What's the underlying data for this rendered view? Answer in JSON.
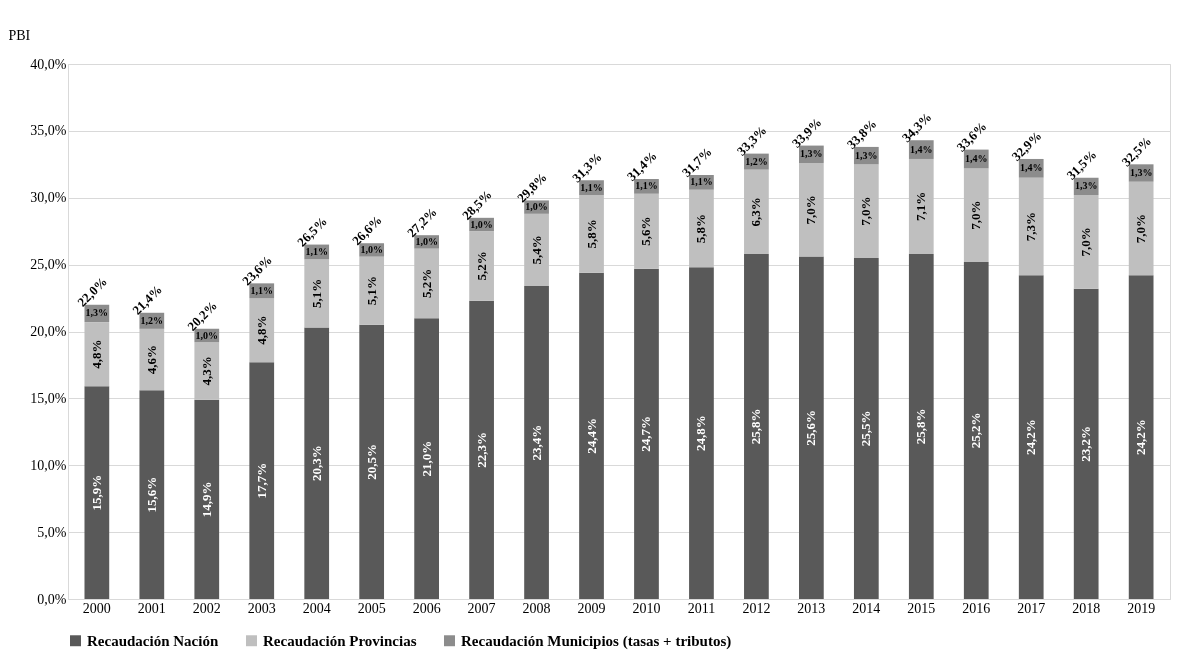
{
  "chart_data": {
    "type": "bar",
    "stacked": true,
    "ylabel": "PBI",
    "categories": [
      "2000",
      "2001",
      "2002",
      "2003",
      "2004",
      "2005",
      "2006",
      "2007",
      "2008",
      "2009",
      "2010",
      "2011",
      "2012",
      "2013",
      "2014",
      "2015",
      "2016",
      "2017",
      "2018",
      "2019"
    ],
    "series": [
      {
        "name": "Recaudación Nación",
        "color": "#595959",
        "values": [
          15.9,
          15.6,
          14.9,
          17.7,
          20.3,
          20.5,
          21.0,
          22.3,
          23.4,
          24.4,
          24.7,
          24.8,
          25.8,
          25.6,
          25.5,
          25.8,
          25.2,
          24.2,
          23.2,
          24.2
        ],
        "value_labels": [
          "15,9%",
          "15,6%",
          "14,9%",
          "17,7%",
          "20,3%",
          "20,5%",
          "21,0%",
          "22,3%",
          "23,4%",
          "24,4%",
          "24,7%",
          "24,8%",
          "25,8%",
          "25,6%",
          "25,5%",
          "25,8%",
          "25,2%",
          "24,2%",
          "23,2%",
          "24,2%"
        ]
      },
      {
        "name": "Recaudación Provincias",
        "color": "#bfbfbf",
        "values": [
          4.8,
          4.6,
          4.3,
          4.8,
          5.1,
          5.1,
          5.2,
          5.2,
          5.4,
          5.8,
          5.6,
          5.8,
          6.3,
          7.0,
          7.0,
          7.1,
          7.0,
          7.3,
          7.0,
          7.0
        ],
        "value_labels": [
          "4,8%",
          "4,6%",
          "4,3%",
          "4,8%",
          "5,1%",
          "5,1%",
          "5,2%",
          "5,2%",
          "5,4%",
          "5,8%",
          "5,6%",
          "5,8%",
          "6,3%",
          "7,0%",
          "7,0%",
          "7,1%",
          "7,0%",
          "7,3%",
          "7,0%",
          "7,0%"
        ]
      },
      {
        "name": "Recaudación Municipios (tasas + tributos)",
        "color": "#8c8c8c",
        "values": [
          1.3,
          1.2,
          1.0,
          1.1,
          1.1,
          1.0,
          1.0,
          1.0,
          1.0,
          1.1,
          1.1,
          1.1,
          1.2,
          1.3,
          1.3,
          1.4,
          1.4,
          1.4,
          1.3,
          1.3
        ],
        "value_labels": [
          "1,3%",
          "1,2%",
          "1,0%",
          "1,1%",
          "1,1%",
          "1,0%",
          "1,0%",
          "1,0%",
          "1,0%",
          "1,1%",
          "1,1%",
          "1,1%",
          "1,2%",
          "1,3%",
          "1,3%",
          "1,4%",
          "1,4%",
          "1,4%",
          "1,3%",
          "1,3%"
        ]
      }
    ],
    "totals": [
      "22,0%",
      "21,4%",
      "20,2%",
      "23,6%",
      "26,5%",
      "26,6%",
      "27,2%",
      "28,5%",
      "29,8%",
      "31,3%",
      "31,4%",
      "31,7%",
      "33,3%",
      "33,9%",
      "33,8%",
      "34,3%",
      "33,6%",
      "32,9%",
      "31,5%",
      "32,5%"
    ],
    "ylim": [
      0,
      40
    ],
    "yticks": [
      {
        "value": 0,
        "label": "0,0%"
      },
      {
        "value": 5,
        "label": "5,0%"
      },
      {
        "value": 10,
        "label": "10,0%"
      },
      {
        "value": 15,
        "label": "15,0%"
      },
      {
        "value": 20,
        "label": "20,0%"
      },
      {
        "value": 25,
        "label": "25,0%"
      },
      {
        "value": 30,
        "label": "30,0%"
      },
      {
        "value": 35,
        "label": "35,0%"
      },
      {
        "value": 40,
        "label": "40,0%"
      }
    ],
    "grid": "y",
    "legend": "bottom"
  }
}
